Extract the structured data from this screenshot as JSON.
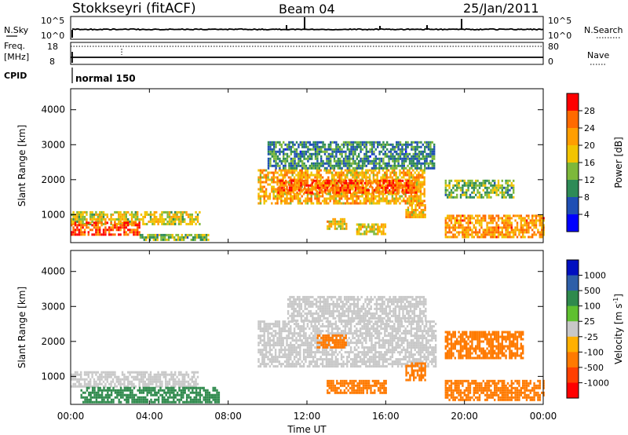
{
  "header": {
    "station": "Stokkseyri (fitACF)",
    "beam": "Beam 04",
    "date": "25/Jan/2011"
  },
  "panels": {
    "nsky": {
      "left_label": "N.Sky",
      "right_label": "N.Search",
      "left_ticks": [
        "10^5",
        "10^0"
      ],
      "right_ticks": [
        "10^5",
        "10^0"
      ]
    },
    "freq": {
      "left_label_line1": "Freq.",
      "left_label_line2": "[MHz]",
      "left_ticks": [
        "18",
        "8"
      ],
      "right_label": "Nave",
      "right_ticks": [
        "80",
        "0"
      ]
    },
    "cpid": {
      "label": "CPID",
      "mode": "normal 150"
    }
  },
  "time_axis": {
    "label": "Time UT",
    "ticks": [
      "00:00",
      "04:00",
      "08:00",
      "12:00",
      "16:00",
      "20:00",
      "00:00"
    ]
  },
  "power_colorbar": {
    "label": "Power [dB]",
    "ticks": [
      "28",
      "24",
      "20",
      "16",
      "12",
      "8",
      "4"
    ],
    "colors": [
      "#ff0000",
      "#ff6a00",
      "#ff9e00",
      "#f2c400",
      "#7db83a",
      "#2e8b57",
      "#1f4fb4",
      "#0000ff"
    ]
  },
  "velocity_colorbar": {
    "label": "Velocity [m s",
    "label_sup": "-1",
    "label_end": "]",
    "ticks": [
      "1000",
      "500",
      "100",
      "25",
      "-25",
      "-100",
      "-500",
      "-1000"
    ],
    "colors": [
      "#0010c0",
      "#2e5fa8",
      "#2f8a4d",
      "#5fc030",
      "#c8c8c8",
      "#ffb000",
      "#ff7a00",
      "#ff4000",
      "#ff0000"
    ]
  },
  "chart_data": [
    {
      "type": "heatmap",
      "name_printed": "",
      "xlabel": "",
      "ylabel": "Slant Range [km]",
      "xlim_hours_ut": [
        0,
        24
      ],
      "ylim": [
        200,
        4600
      ],
      "yticks": [
        "4000",
        "3000",
        "2000",
        "1000"
      ],
      "value_label": "Power [dB]",
      "value_range": [
        0,
        30
      ],
      "regions": [
        {
          "t_start": 0.0,
          "t_end": 6.6,
          "range_start": 750,
          "range_end": 1100,
          "value": 16
        },
        {
          "t_start": 0.0,
          "t_end": 3.5,
          "range_start": 450,
          "range_end": 800,
          "value": 26
        },
        {
          "t_start": 3.5,
          "t_end": 7.0,
          "range_start": 300,
          "range_end": 450,
          "value": 12
        },
        {
          "t_start": 9.5,
          "t_end": 18.0,
          "range_start": 1300,
          "range_end": 2300,
          "value": 20
        },
        {
          "t_start": 10.5,
          "t_end": 17.5,
          "range_start": 1600,
          "range_end": 2000,
          "value": 26
        },
        {
          "t_start": 10.0,
          "t_end": 18.5,
          "range_start": 2300,
          "range_end": 3100,
          "value": 8
        },
        {
          "t_start": 13.0,
          "t_end": 14.0,
          "range_start": 600,
          "range_end": 900,
          "value": 18
        },
        {
          "t_start": 14.5,
          "t_end": 16.0,
          "range_start": 450,
          "range_end": 750,
          "value": 18
        },
        {
          "t_start": 17.0,
          "t_end": 18.0,
          "range_start": 900,
          "range_end": 1300,
          "value": 20
        },
        {
          "t_start": 19.0,
          "t_end": 22.5,
          "range_start": 1500,
          "range_end": 2000,
          "value": 12
        },
        {
          "t_start": 19.0,
          "t_end": 24.0,
          "range_start": 350,
          "range_end": 1000,
          "value": 22
        }
      ]
    },
    {
      "type": "heatmap",
      "name_printed": "",
      "xlabel": "Time UT",
      "ylabel": "Slant Range [km]",
      "xlim_hours_ut": [
        0,
        24
      ],
      "ylim": [
        200,
        4600
      ],
      "yticks": [
        "4000",
        "3000",
        "2000",
        "1000"
      ],
      "value_label": "Velocity [m s-1]",
      "value_range": [
        -1000,
        1000
      ],
      "regions": [
        {
          "t_start": 0.0,
          "t_end": 6.5,
          "range_start": 700,
          "range_end": 1150,
          "value": 0
        },
        {
          "t_start": 0.5,
          "t_end": 7.5,
          "range_start": 250,
          "range_end": 700,
          "value": 80
        },
        {
          "t_start": 9.5,
          "t_end": 18.5,
          "range_start": 1300,
          "range_end": 2600,
          "value": 0
        },
        {
          "t_start": 11.0,
          "t_end": 18.0,
          "range_start": 2600,
          "range_end": 3300,
          "value": 0
        },
        {
          "t_start": 12.5,
          "t_end": 14.0,
          "range_start": 1800,
          "range_end": 2200,
          "value": -300
        },
        {
          "t_start": 13.0,
          "t_end": 16.0,
          "range_start": 500,
          "range_end": 900,
          "value": -300
        },
        {
          "t_start": 17.0,
          "t_end": 18.0,
          "range_start": 900,
          "range_end": 1400,
          "value": -300
        },
        {
          "t_start": 19.0,
          "t_end": 23.0,
          "range_start": 1500,
          "range_end": 2300,
          "value": -300
        },
        {
          "t_start": 19.0,
          "t_end": 24.0,
          "range_start": 300,
          "range_end": 900,
          "value": -300
        }
      ]
    }
  ]
}
